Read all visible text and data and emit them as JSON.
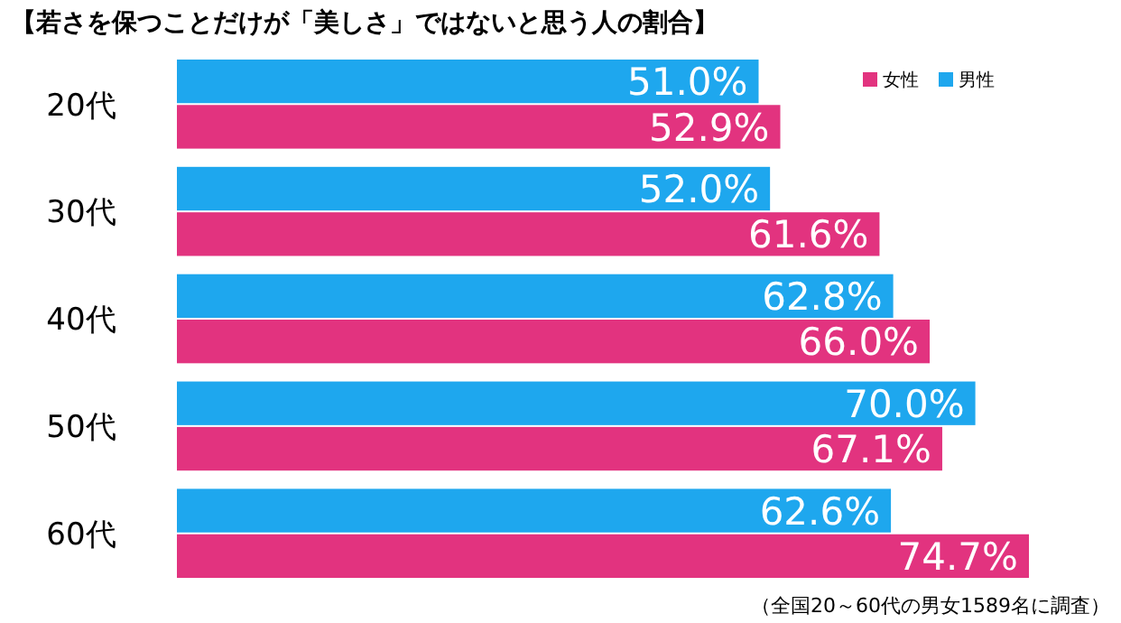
{
  "chart_data": {
    "type": "bar",
    "orientation": "horizontal",
    "title": "【若さを保つことだけが「美しさ」ではないと思う人の割合】",
    "categories": [
      "20代",
      "30代",
      "40代",
      "50代",
      "60代"
    ],
    "series": [
      {
        "name": "男性",
        "color": "#1ea7ee",
        "values": [
          51.0,
          52.0,
          62.8,
          70.0,
          62.6
        ],
        "value_labels": [
          "51.0%",
          "52.0%",
          "62.8%",
          "70.0%",
          "62.6%"
        ]
      },
      {
        "name": "女性",
        "color": "#e2337f",
        "values": [
          52.9,
          61.6,
          66.0,
          67.1,
          74.7
        ],
        "value_labels": [
          "52.9%",
          "61.6%",
          "66.0%",
          "67.1%",
          "74.7%"
        ]
      }
    ],
    "legend": "top right",
    "annotations": [
      "（全国20～60代の男女1589名に調査）"
    ]
  }
}
